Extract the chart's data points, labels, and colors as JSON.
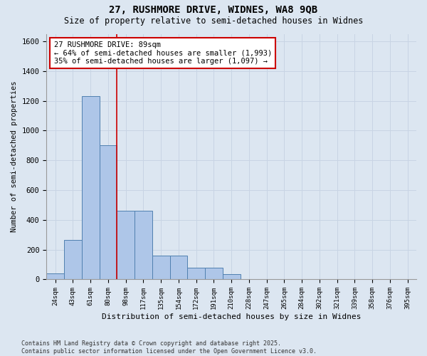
{
  "title1": "27, RUSHMORE DRIVE, WIDNES, WA8 9QB",
  "title2": "Size of property relative to semi-detached houses in Widnes",
  "xlabel": "Distribution of semi-detached houses by size in Widnes",
  "ylabel": "Number of semi-detached properties",
  "categories": [
    "24sqm",
    "43sqm",
    "61sqm",
    "80sqm",
    "98sqm",
    "117sqm",
    "135sqm",
    "154sqm",
    "172sqm",
    "191sqm",
    "210sqm",
    "228sqm",
    "247sqm",
    "265sqm",
    "284sqm",
    "302sqm",
    "321sqm",
    "339sqm",
    "358sqm",
    "376sqm",
    "395sqm"
  ],
  "values": [
    40,
    265,
    1230,
    900,
    460,
    460,
    160,
    160,
    80,
    80,
    35,
    0,
    0,
    0,
    0,
    0,
    0,
    0,
    0,
    0,
    0
  ],
  "bar_color": "#aec6e8",
  "bar_edge_color": "#5080b0",
  "grid_color": "#c8d4e4",
  "background_color": "#dce6f1",
  "annotation_box_color": "#ffffff",
  "annotation_border_color": "#cc0000",
  "vline_color": "#cc0000",
  "vline_x_index": 3,
  "annotation_title": "27 RUSHMORE DRIVE: 89sqm",
  "annotation_line1": "← 64% of semi-detached houses are smaller (1,993)",
  "annotation_line2": "35% of semi-detached houses are larger (1,097) →",
  "footnote1": "Contains HM Land Registry data © Crown copyright and database right 2025.",
  "footnote2": "Contains public sector information licensed under the Open Government Licence v3.0.",
  "ylim": [
    0,
    1650
  ],
  "yticks": [
    0,
    200,
    400,
    600,
    800,
    1000,
    1200,
    1400,
    1600
  ]
}
